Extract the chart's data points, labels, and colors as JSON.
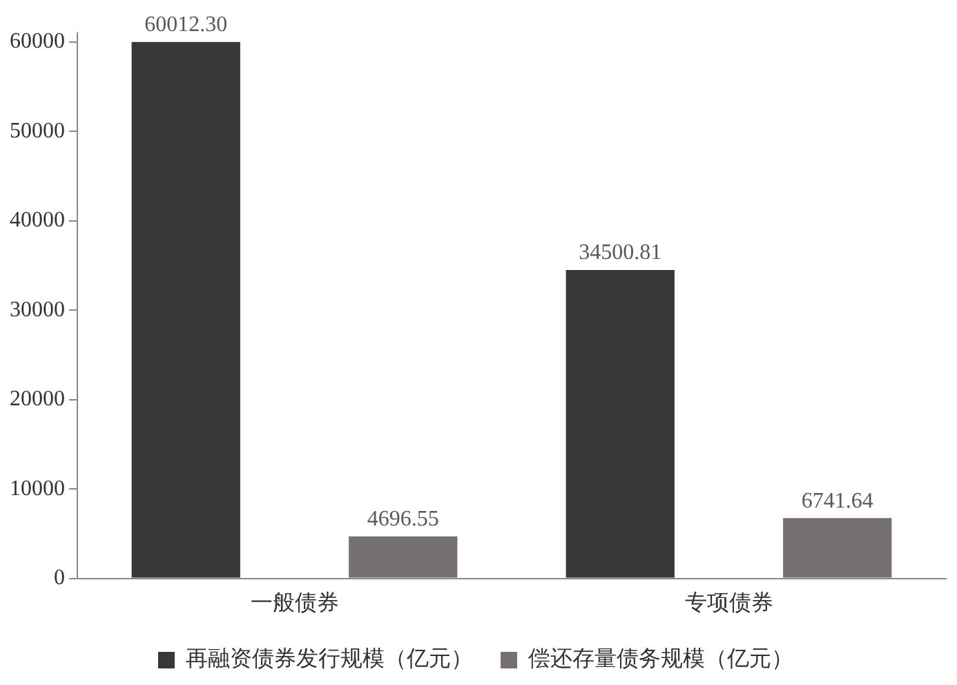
{
  "chart_data": {
    "type": "bar",
    "categories": [
      "一般债券",
      "专项债券"
    ],
    "series": [
      {
        "name": "再融资债券发行规模（亿元）",
        "color": "#3a3836",
        "values": [
          60012.3,
          34500.81
        ],
        "value_labels": [
          "60012.30",
          "34500.81"
        ]
      },
      {
        "name": "偿还存量债务规模（亿元）",
        "color": "#767170",
        "values": [
          4696.55,
          6741.64
        ],
        "value_labels": [
          "4696.55",
          "6741.64"
        ]
      }
    ],
    "ylim": [
      0,
      61000
    ],
    "yticks": [
      0,
      10000,
      20000,
      30000,
      40000,
      50000,
      60000
    ],
    "grid": false,
    "legend": "bottom"
  }
}
